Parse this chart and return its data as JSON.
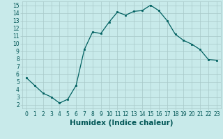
{
  "x": [
    0,
    1,
    2,
    3,
    4,
    5,
    6,
    7,
    8,
    9,
    10,
    11,
    12,
    13,
    14,
    15,
    16,
    17,
    18,
    19,
    20,
    21,
    22,
    23
  ],
  "y": [
    5.5,
    4.5,
    3.5,
    3.0,
    2.2,
    2.7,
    4.5,
    9.2,
    11.5,
    11.3,
    12.8,
    14.1,
    13.7,
    14.2,
    14.3,
    15.0,
    14.3,
    13.0,
    11.2,
    10.4,
    9.9,
    9.2,
    7.9,
    7.8
  ],
  "line_color": "#006060",
  "marker_color": "#006060",
  "bg_color": "#c8eaea",
  "grid_color": "#a8c8c8",
  "xlabel": "Humidex (Indice chaleur)",
  "ylabel_ticks": [
    2,
    3,
    4,
    5,
    6,
    7,
    8,
    9,
    10,
    11,
    12,
    13,
    14,
    15
  ],
  "xlim": [
    -0.5,
    23.5
  ],
  "ylim": [
    1.5,
    15.5
  ],
  "tick_font_color": "#005555",
  "label_font_color": "#005555",
  "tick_fontsize": 5.5,
  "xlabel_fontsize": 7.5
}
